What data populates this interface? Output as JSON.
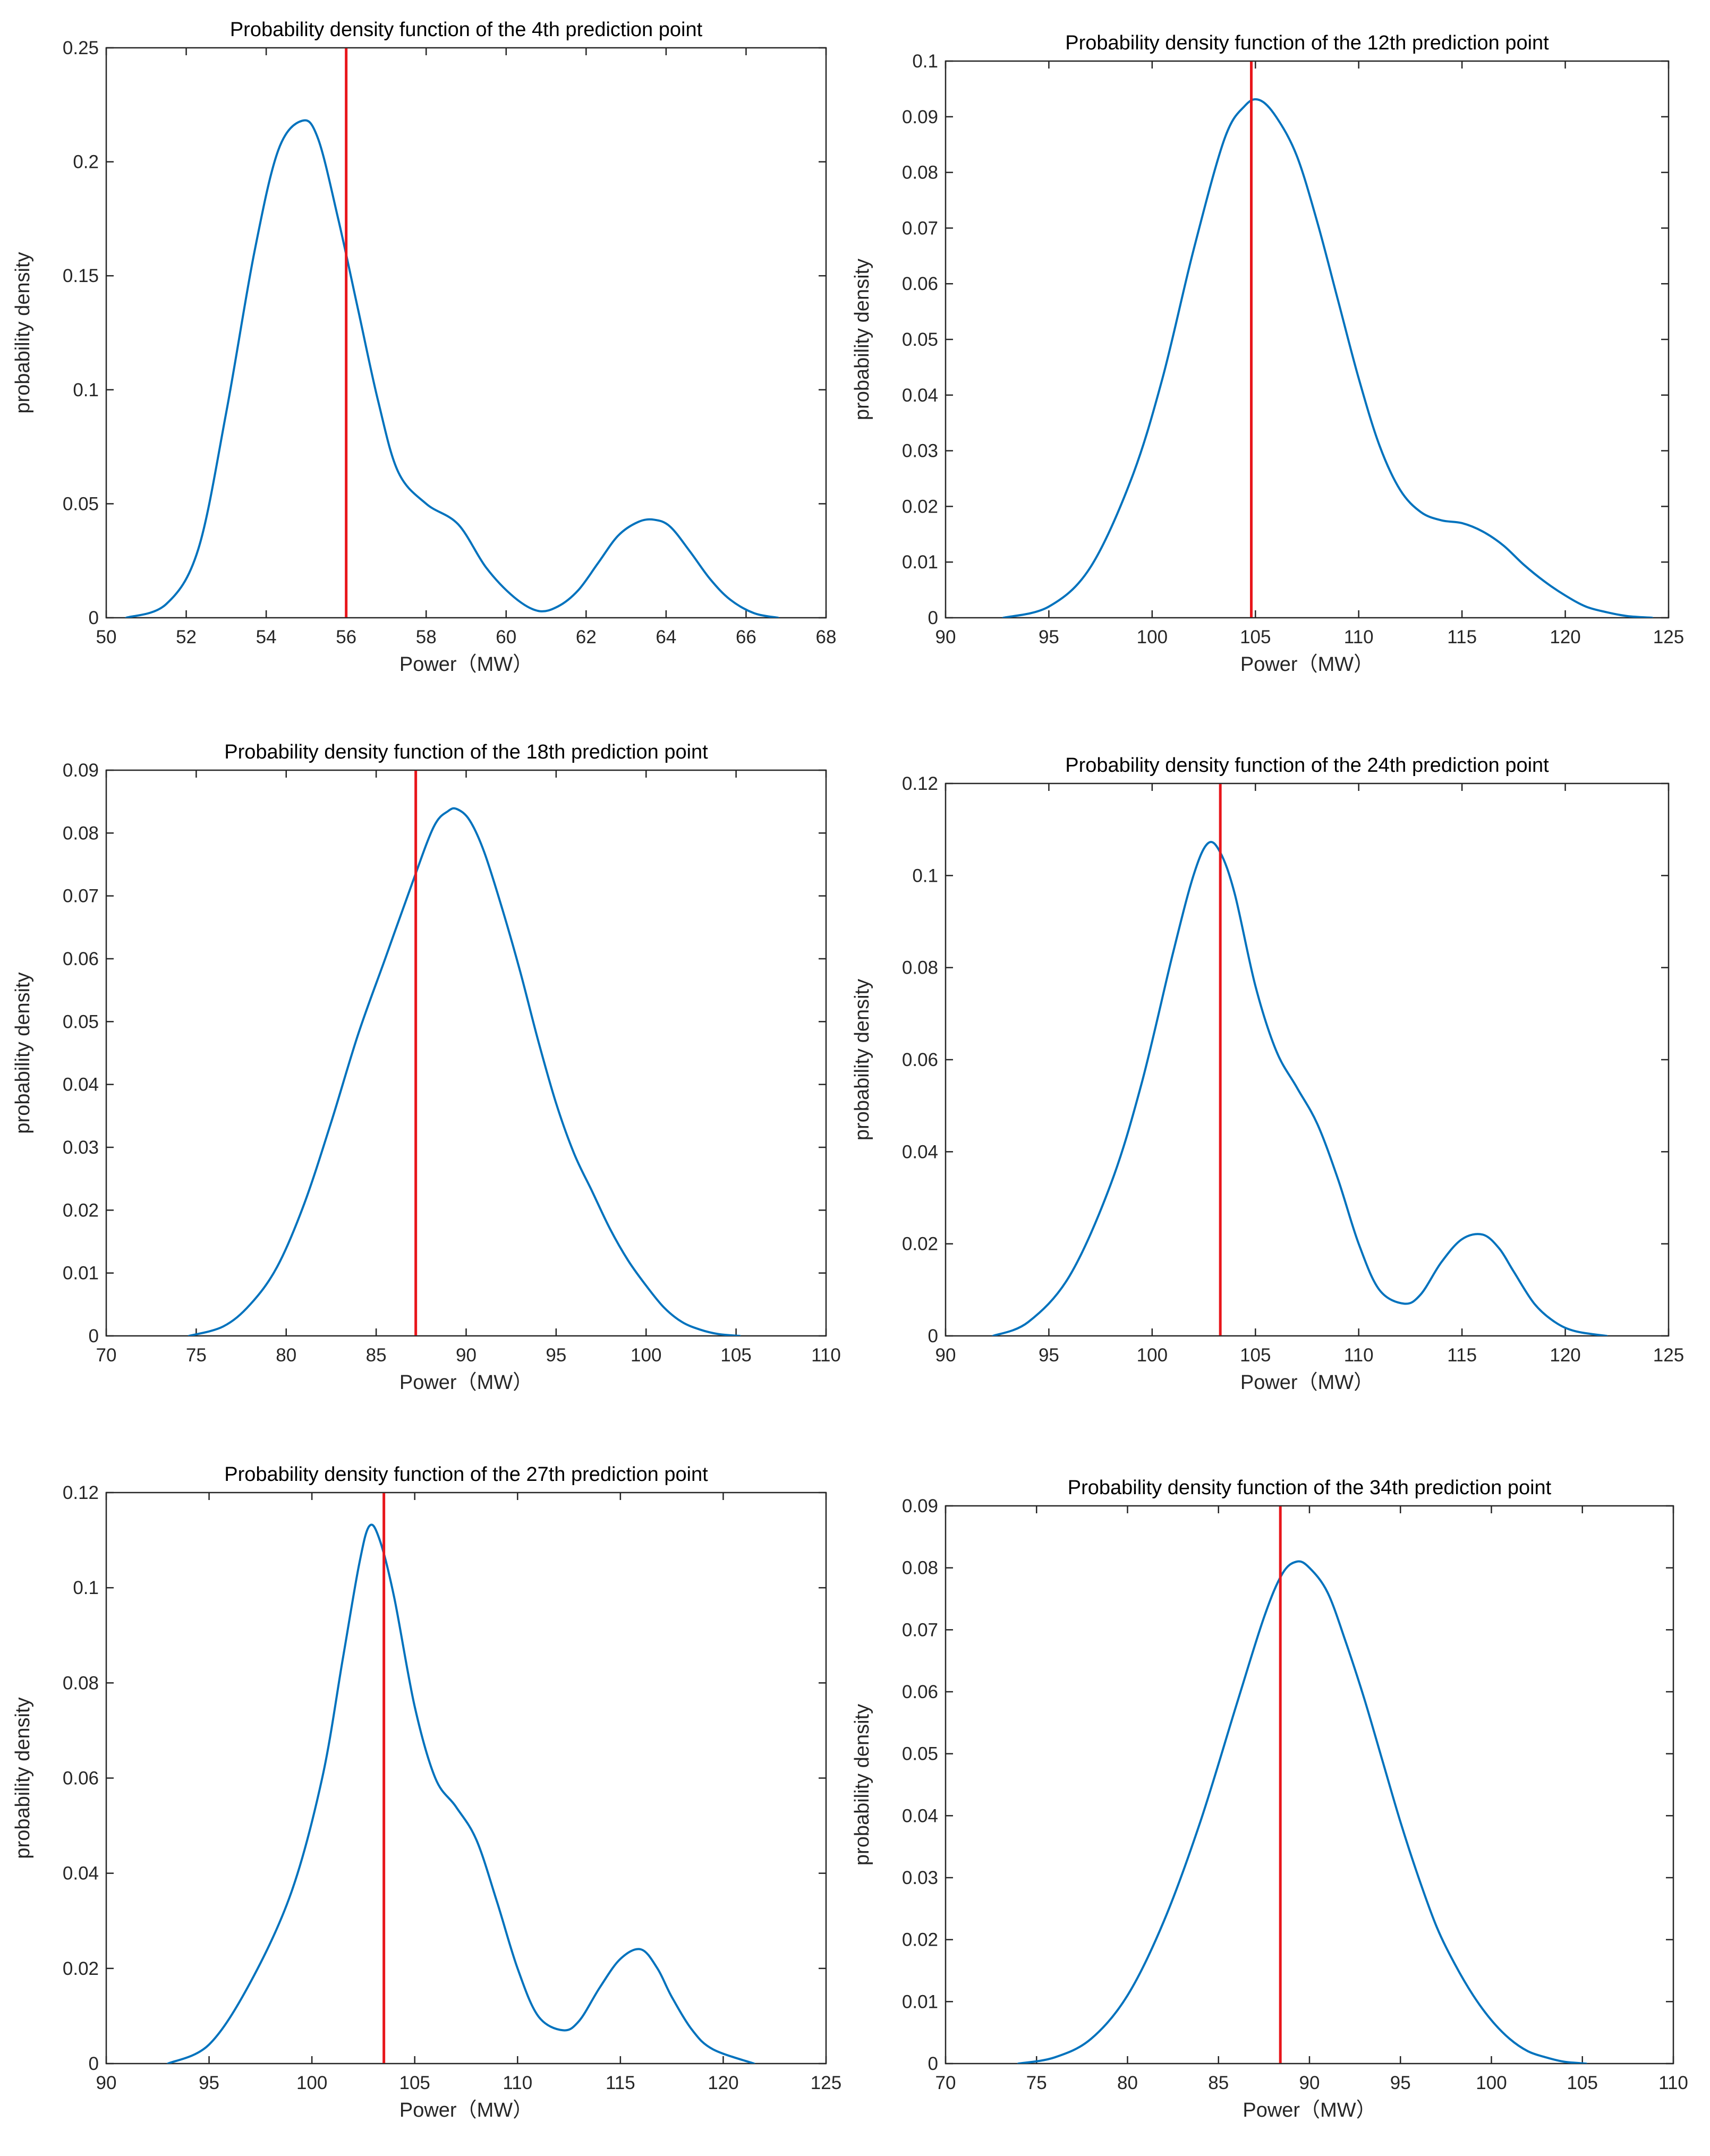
{
  "figure": {
    "panel_count": 6,
    "layout": "3 rows x 2 columns"
  },
  "colors": {
    "curve": "#0072BD",
    "marker": "#E8161B",
    "axis": "#262626",
    "background": "#FFFFFF"
  },
  "chart_data": [
    {
      "type": "line",
      "title": "Probability density function of the 4th prediction point",
      "xlabel": "Power（MW）",
      "ylabel": "probability density",
      "xlim": [
        50,
        68
      ],
      "ylim": [
        0,
        0.25
      ],
      "xticks": [
        50,
        52,
        54,
        56,
        58,
        60,
        62,
        64,
        66,
        68
      ],
      "yticks": [
        0,
        0.05,
        0.1,
        0.15,
        0.2,
        0.25
      ],
      "xtick_labels": [
        "50",
        "52",
        "54",
        "56",
        "58",
        "60",
        "62",
        "64",
        "66",
        "68"
      ],
      "ytick_labels": [
        "0",
        "0.05",
        "0.1",
        "0.15",
        "0.2",
        "0.25"
      ],
      "marker_x": 56,
      "series": [
        {
          "name": "pdf",
          "x": [
            50.5,
            51.5,
            52.3,
            53.0,
            53.7,
            54.3,
            54.9,
            55.3,
            55.8,
            56.3,
            56.8,
            57.3,
            58.0,
            58.8,
            59.5,
            60.2,
            60.8,
            61.3,
            61.8,
            62.3,
            62.8,
            63.3,
            63.7,
            64.1,
            64.6,
            65.1,
            65.6,
            66.2,
            66.8
          ],
          "y": [
            0,
            0.006,
            0.03,
            0.09,
            0.16,
            0.205,
            0.218,
            0.21,
            0.175,
            0.135,
            0.095,
            0.064,
            0.05,
            0.041,
            0.022,
            0.009,
            0.003,
            0.005,
            0.012,
            0.024,
            0.036,
            0.042,
            0.043,
            0.04,
            0.029,
            0.017,
            0.008,
            0.002,
            0
          ]
        }
      ]
    },
    {
      "type": "line",
      "title": "Probability density function of the 12th prediction point",
      "xlabel": "Power（MW）",
      "ylabel": "probability density",
      "xlim": [
        90,
        125
      ],
      "ylim": [
        0,
        0.1
      ],
      "xticks": [
        90,
        95,
        100,
        105,
        110,
        115,
        120,
        125
      ],
      "yticks": [
        0,
        0.01,
        0.02,
        0.03,
        0.04,
        0.05,
        0.06,
        0.07,
        0.08,
        0.09,
        0.1
      ],
      "xtick_labels": [
        "90",
        "95",
        "100",
        "105",
        "110",
        "115",
        "120",
        "125"
      ],
      "ytick_labels": [
        "0",
        "0.01",
        "0.02",
        "0.03",
        "0.04",
        "0.05",
        "0.06",
        "0.07",
        "0.08",
        "0.09",
        "0.1"
      ],
      "marker_x": 104.8,
      "series": [
        {
          "name": "pdf",
          "x": [
            92.8,
            95,
            97,
            99,
            100.5,
            102,
            103.5,
            104.5,
            105.2,
            106,
            107,
            108,
            109,
            110,
            111,
            112,
            113,
            114,
            115,
            116,
            117,
            118,
            119,
            120,
            121,
            122,
            123,
            124.2
          ],
          "y": [
            0,
            0.002,
            0.009,
            0.025,
            0.043,
            0.066,
            0.086,
            0.092,
            0.093,
            0.09,
            0.083,
            0.071,
            0.057,
            0.043,
            0.031,
            0.023,
            0.019,
            0.0175,
            0.017,
            0.0155,
            0.013,
            0.0095,
            0.0065,
            0.004,
            0.002,
            0.001,
            0.0003,
            0
          ]
        }
      ]
    },
    {
      "type": "line",
      "title": "Probability density function of the 18th prediction point",
      "xlabel": "Power（MW）",
      "ylabel": "probability density",
      "xlim": [
        70,
        110
      ],
      "ylim": [
        0,
        0.09
      ],
      "xticks": [
        70,
        75,
        80,
        85,
        90,
        95,
        100,
        105,
        110
      ],
      "yticks": [
        0,
        0.01,
        0.02,
        0.03,
        0.04,
        0.05,
        0.06,
        0.07,
        0.08,
        0.09
      ],
      "xtick_labels": [
        "70",
        "75",
        "80",
        "85",
        "90",
        "95",
        "100",
        "105",
        "110"
      ],
      "ytick_labels": [
        "0",
        "0.01",
        "0.02",
        "0.03",
        "0.04",
        "0.05",
        "0.06",
        "0.07",
        "0.08",
        "0.09"
      ],
      "marker_x": 87.2,
      "series": [
        {
          "name": "pdf",
          "x": [
            74.6,
            76.5,
            78,
            79.5,
            81,
            82.5,
            84,
            85.5,
            87,
            88.2,
            89,
            89.5,
            90.2,
            91,
            92,
            93,
            94,
            95,
            96,
            97,
            98,
            99,
            100,
            101,
            102,
            103,
            104,
            105.2
          ],
          "y": [
            0,
            0.0015,
            0.005,
            0.011,
            0.021,
            0.034,
            0.048,
            0.06,
            0.072,
            0.081,
            0.0835,
            0.0838,
            0.082,
            0.077,
            0.068,
            0.058,
            0.047,
            0.037,
            0.029,
            0.023,
            0.017,
            0.012,
            0.008,
            0.0045,
            0.0022,
            0.001,
            0.0003,
            0
          ]
        }
      ]
    },
    {
      "type": "line",
      "title": "Probability density function of the 24th prediction point",
      "xlabel": "Power（MW）",
      "ylabel": "probability density",
      "xlim": [
        90,
        125
      ],
      "ylim": [
        0,
        0.12
      ],
      "xticks": [
        90,
        95,
        100,
        105,
        110,
        115,
        120,
        125
      ],
      "yticks": [
        0,
        0.02,
        0.04,
        0.06,
        0.08,
        0.1,
        0.12
      ],
      "xtick_labels": [
        "90",
        "95",
        "100",
        "105",
        "110",
        "115",
        "120",
        "125"
      ],
      "ytick_labels": [
        "0",
        "0.02",
        "0.04",
        "0.06",
        "0.08",
        "0.1",
        "0.12"
      ],
      "marker_x": 103.3,
      "series": [
        {
          "name": "pdf",
          "x": [
            92.3,
            94,
            96,
            98,
            99.5,
            101,
            102,
            102.7,
            103.3,
            104,
            105,
            106,
            107,
            108,
            109,
            110,
            111,
            112.2,
            113,
            114,
            115,
            116,
            116.8,
            117.5,
            118.5,
            119.5,
            120.5,
            122
          ],
          "y": [
            0,
            0.003,
            0.013,
            0.033,
            0.055,
            0.083,
            0.1,
            0.107,
            0.105,
            0.096,
            0.076,
            0.062,
            0.054,
            0.046,
            0.034,
            0.02,
            0.01,
            0.007,
            0.009,
            0.016,
            0.021,
            0.022,
            0.019,
            0.014,
            0.007,
            0.003,
            0.001,
            0
          ]
        }
      ]
    },
    {
      "type": "line",
      "title": "Probability density function of the 27th prediction point",
      "xlabel": "Power（MW）",
      "ylabel": "probability density",
      "xlim": [
        90,
        125
      ],
      "ylim": [
        0,
        0.12
      ],
      "xticks": [
        90,
        95,
        100,
        105,
        110,
        115,
        120,
        125
      ],
      "yticks": [
        0,
        0.02,
        0.04,
        0.06,
        0.08,
        0.1,
        0.12
      ],
      "xtick_labels": [
        "90",
        "95",
        "100",
        "105",
        "110",
        "115",
        "120",
        "125"
      ],
      "ytick_labels": [
        "0",
        "0.02",
        "0.04",
        "0.06",
        "0.08",
        "0.1",
        "0.12"
      ],
      "marker_x": 103.5,
      "series": [
        {
          "name": "pdf",
          "x": [
            93,
            95,
            97,
            99,
            100.5,
            101.5,
            102.3,
            102.8,
            103.3,
            104,
            105,
            106,
            107,
            108,
            109,
            110,
            111,
            112.2,
            113,
            114,
            115,
            116,
            116.8,
            117.5,
            118.5,
            119.5,
            121.5
          ],
          "y": [
            0,
            0.004,
            0.017,
            0.036,
            0.06,
            0.085,
            0.105,
            0.113,
            0.11,
            0.098,
            0.075,
            0.06,
            0.054,
            0.047,
            0.034,
            0.02,
            0.01,
            0.007,
            0.009,
            0.016,
            0.022,
            0.024,
            0.02,
            0.014,
            0.007,
            0.003,
            0
          ]
        }
      ]
    },
    {
      "type": "line",
      "title": "Probability density function of the 34th prediction point",
      "xlabel": "Power（MW）",
      "ylabel": "probability density",
      "xlim": [
        70,
        110
      ],
      "ylim": [
        0,
        0.09
      ],
      "xticks": [
        70,
        75,
        80,
        85,
        90,
        95,
        100,
        105,
        110
      ],
      "yticks": [
        0,
        0.01,
        0.02,
        0.03,
        0.04,
        0.05,
        0.06,
        0.07,
        0.08,
        0.09
      ],
      "xtick_labels": [
        "70",
        "75",
        "80",
        "85",
        "90",
        "95",
        "100",
        "105",
        "110"
      ],
      "ytick_labels": [
        "0",
        "0.01",
        "0.02",
        "0.03",
        "0.04",
        "0.05",
        "0.06",
        "0.07",
        "0.08",
        "0.09"
      ],
      "marker_x": 88.4,
      "series": [
        {
          "name": "pdf",
          "x": [
            74,
            76,
            78,
            80,
            82,
            84,
            86,
            87.5,
            88.5,
            89.3,
            90,
            91,
            92,
            93,
            94,
            95,
            96,
            97,
            98,
            99,
            100,
            101,
            102,
            103,
            104,
            105.2
          ],
          "y": [
            0,
            0.001,
            0.004,
            0.011,
            0.023,
            0.039,
            0.058,
            0.072,
            0.079,
            0.081,
            0.08,
            0.076,
            0.068,
            0.059,
            0.049,
            0.039,
            0.03,
            0.022,
            0.016,
            0.011,
            0.007,
            0.004,
            0.002,
            0.001,
            0.0003,
            0
          ]
        }
      ]
    }
  ]
}
